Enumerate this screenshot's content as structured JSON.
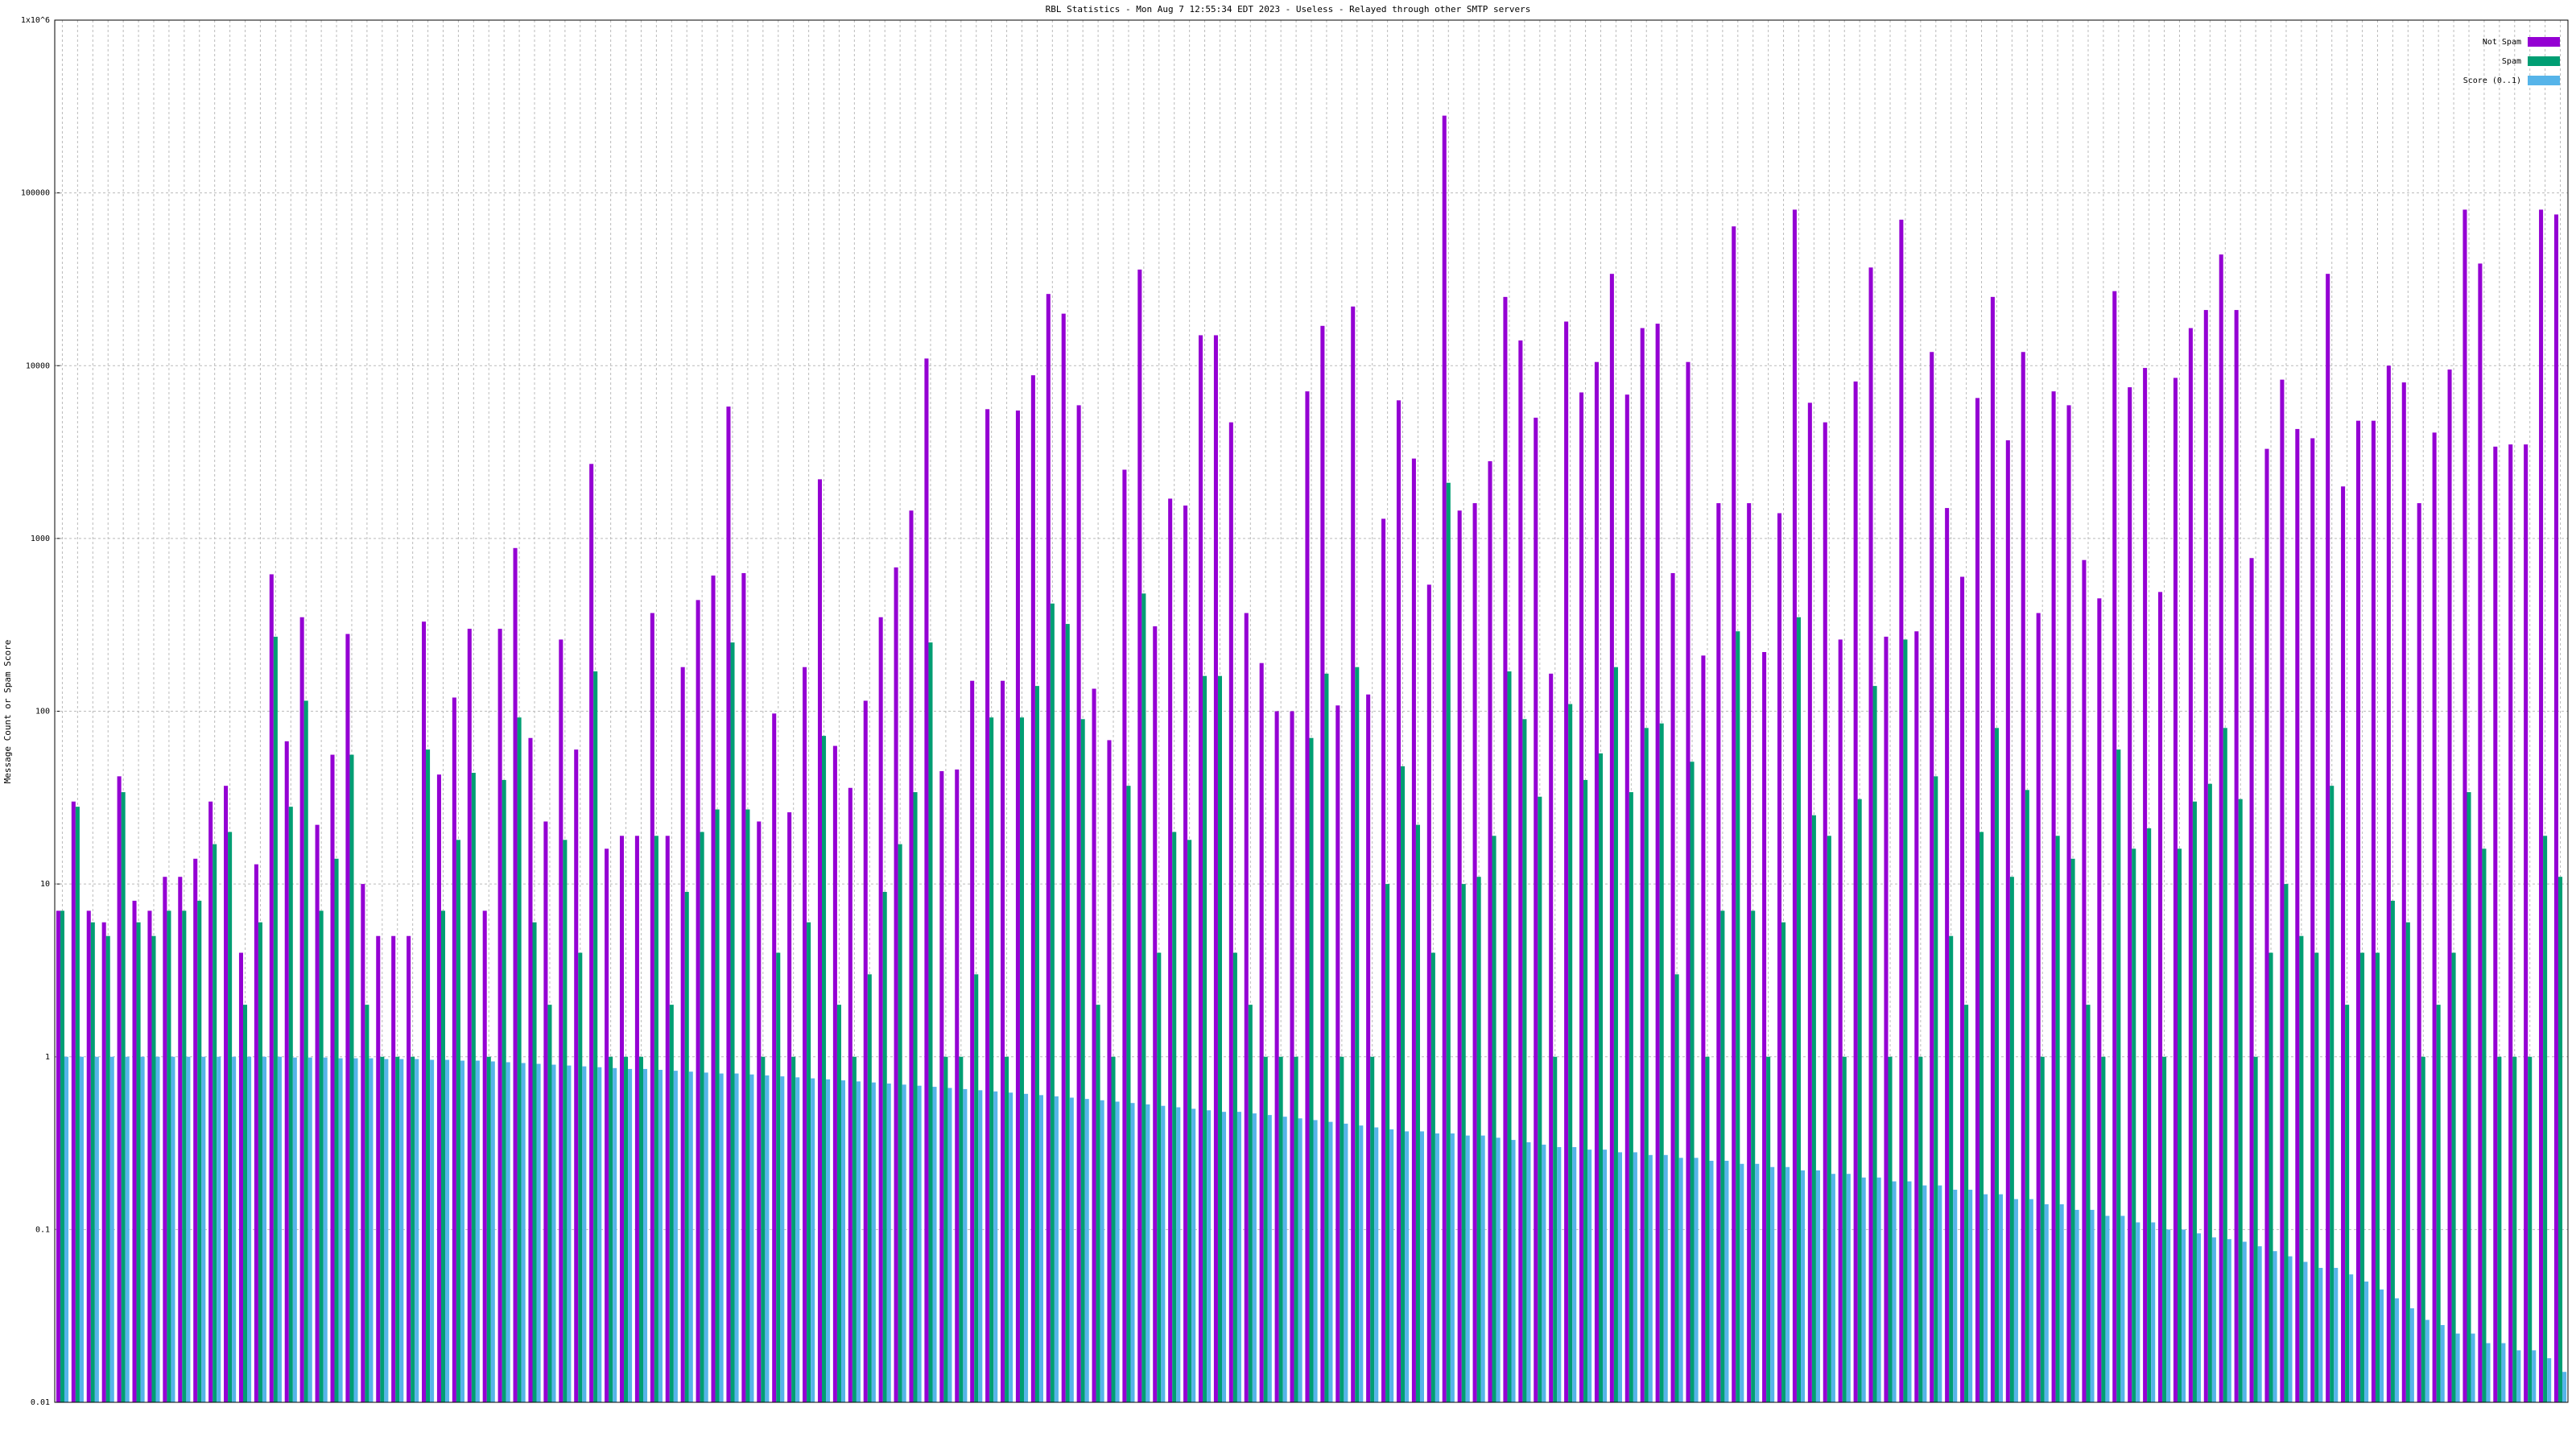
{
  "chart_data": {
    "type": "bar",
    "title": "RBL Statistics - Mon Aug  7 12:55:34 EDT 2023 - Useless - Relayed through other SMTP servers",
    "y_label": "Message Count or Spam Score",
    "log_scale": true,
    "grid": true,
    "legend": "top-right",
    "ylim": [
      0.01,
      1000000
    ],
    "yticks": [
      0.01,
      0.1,
      1,
      10,
      100,
      1000,
      10000,
      100000,
      {
        "value": 1000000,
        "label": "1x10^6"
      }
    ],
    "categories": [
      null,
      null,
      null,
      null,
      null,
      null,
      null,
      null,
      null,
      null,
      null,
      null,
      null,
      null,
      null,
      null,
      null,
      null,
      null,
      null,
      null,
      null,
      null,
      null,
      null,
      null,
      null,
      null,
      null,
      null,
      null,
      null,
      null,
      null,
      null,
      null,
      null,
      null,
      null,
      null,
      null,
      null,
      null,
      null,
      null,
      null,
      null,
      null,
      null,
      null,
      null,
      null,
      null,
      null,
      null,
      null,
      null,
      null,
      null,
      null,
      null,
      null,
      null,
      null,
      null,
      null,
      null,
      null,
      null,
      null,
      null,
      null,
      null,
      null,
      null,
      null,
      null,
      null,
      null,
      null,
      null,
      null,
      null,
      null,
      null,
      null,
      null,
      null,
      null,
      null,
      null,
      null,
      null,
      null,
      null,
      null,
      null,
      null,
      null,
      null,
      null,
      null,
      null,
      null,
      null,
      null,
      null,
      null,
      null,
      null,
      null,
      null,
      null,
      null,
      null,
      null,
      null,
      null,
      null,
      null,
      null,
      null,
      null,
      null,
      null,
      null,
      null,
      null,
      null,
      null,
      null,
      null,
      null,
      null,
      null,
      null,
      null,
      null,
      null,
      null,
      null,
      null,
      null,
      null,
      null,
      null,
      null,
      null,
      null,
      null,
      null,
      null,
      null,
      null,
      null,
      null,
      null,
      null,
      null,
      null,
      null,
      null,
      null,
      null,
      null
    ],
    "series": [
      {
        "name": "Not Spam",
        "color": "#9400d3",
        "values": [
          7,
          30,
          7,
          6,
          42,
          8,
          7,
          11,
          11,
          14,
          30,
          37,
          4,
          13,
          620,
          67,
          350,
          22,
          56,
          280,
          10,
          5,
          5,
          5,
          330,
          43,
          120,
          300,
          7,
          300,
          880,
          70,
          23,
          260,
          60,
          2700,
          16,
          19,
          19,
          370,
          19,
          180,
          440,
          610,
          5800,
          630,
          23,
          97,
          26,
          180,
          2200,
          63,
          36,
          115,
          350,
          680,
          1450,
          11000,
          45,
          46,
          150,
          5600,
          150,
          5500,
          8800,
          26000,
          20000,
          5900,
          135,
          68,
          2500,
          36000,
          310,
          1700,
          1550,
          15000,
          15000,
          4700,
          370,
          190,
          100,
          100,
          7100,
          17000,
          108,
          22000,
          125,
          1300,
          6300,
          2900,
          540,
          280000,
          1450,
          1600,
          2800,
          25000,
          14000,
          5000,
          165,
          18000,
          7000,
          10500,
          34000,
          6800,
          16500,
          17500,
          630,
          10500,
          210,
          1600,
          64000,
          1600,
          220,
          1400,
          80000,
          6100,
          4700,
          260,
          8100,
          37000,
          270,
          70000,
          290,
          12000,
          1500,
          600,
          6500,
          25000,
          3700,
          12000,
          370,
          7100,
          5900,
          750,
          450,
          27000,
          7500,
          9700,
          490,
          8500,
          16500,
          21000,
          44000,
          21000,
          770,
          3300,
          8300,
          4300,
          3800,
          34000,
          2000,
          4800,
          4800,
          10000,
          8000,
          1600,
          4100,
          9500,
          80000,
          39000,
          3400,
          3500,
          3500,
          80000,
          75000
        ]
      },
      {
        "name": "Spam",
        "color": "#009e73",
        "values": [
          7,
          28,
          6,
          5,
          34,
          6,
          5,
          7,
          7,
          8,
          17,
          20,
          2,
          6,
          270,
          28,
          115,
          7,
          14,
          56,
          2,
          1,
          1,
          1,
          60,
          7,
          18,
          44,
          1,
          40,
          92,
          6,
          2,
          18,
          4,
          170,
          1,
          1,
          1,
          19,
          2,
          9,
          20,
          27,
          250,
          27,
          1,
          4,
          1,
          6,
          72,
          2,
          1,
          3,
          9,
          17,
          34,
          250,
          1,
          1,
          3,
          92,
          1,
          92,
          140,
          420,
          320,
          90,
          2,
          1,
          37,
          480,
          4,
          20,
          18,
          160,
          160,
          4,
          2,
          1,
          1,
          1,
          70,
          165,
          1,
          180,
          1,
          10,
          48,
          22,
          4,
          2100,
          10,
          11,
          19,
          170,
          90,
          32,
          1,
          110,
          40,
          57,
          180,
          34,
          80,
          85,
          3,
          51,
          1,
          7,
          290,
          7,
          1,
          6,
          350,
          25,
          19,
          1,
          31,
          140,
          1,
          260,
          1,
          42,
          5,
          2,
          20,
          80,
          11,
          35,
          1,
          19,
          14,
          2,
          1,
          60,
          16,
          21,
          1,
          16,
          30,
          38,
          80,
          31,
          1,
          4,
          10,
          5,
          4,
          37,
          2,
          4,
          4,
          8,
          6,
          1,
          2,
          4,
          34,
          16,
          1,
          1,
          1,
          19,
          11
        ]
      },
      {
        "name": "Score (0..1)",
        "color": "#56b4e9",
        "values": [
          1,
          1,
          1,
          1,
          1,
          1,
          1,
          1,
          1,
          1,
          1,
          1,
          1,
          1,
          1,
          0.99,
          0.99,
          0.99,
          0.98,
          0.98,
          0.98,
          0.97,
          0.97,
          0.97,
          0.96,
          0.96,
          0.95,
          0.95,
          0.94,
          0.93,
          0.92,
          0.91,
          0.9,
          0.89,
          0.88,
          0.87,
          0.86,
          0.85,
          0.85,
          0.84,
          0.83,
          0.82,
          0.81,
          0.8,
          0.8,
          0.79,
          0.78,
          0.77,
          0.76,
          0.75,
          0.74,
          0.73,
          0.72,
          0.71,
          0.7,
          0.69,
          0.68,
          0.67,
          0.66,
          0.65,
          0.64,
          0.63,
          0.62,
          0.61,
          0.6,
          0.59,
          0.58,
          0.57,
          0.56,
          0.55,
          0.54,
          0.53,
          0.52,
          0.51,
          0.5,
          0.49,
          0.48,
          0.48,
          0.47,
          0.46,
          0.45,
          0.44,
          0.43,
          0.42,
          0.41,
          0.4,
          0.39,
          0.38,
          0.37,
          0.37,
          0.36,
          0.36,
          0.35,
          0.35,
          0.34,
          0.33,
          0.32,
          0.31,
          0.3,
          0.3,
          0.29,
          0.29,
          0.28,
          0.28,
          0.27,
          0.27,
          0.26,
          0.26,
          0.25,
          0.25,
          0.24,
          0.24,
          0.23,
          0.23,
          0.22,
          0.22,
          0.21,
          0.21,
          0.2,
          0.2,
          0.19,
          0.19,
          0.18,
          0.18,
          0.17,
          0.17,
          0.16,
          0.16,
          0.15,
          0.15,
          0.14,
          0.14,
          0.13,
          0.13,
          0.12,
          0.12,
          0.11,
          0.11,
          0.1,
          0.1,
          0.095,
          0.09,
          0.088,
          0.085,
          0.08,
          0.075,
          0.07,
          0.065,
          0.06,
          0.06,
          0.055,
          0.05,
          0.045,
          0.04,
          0.035,
          0.03,
          0.028,
          0.025,
          0.025,
          0.022,
          0.022,
          0.02,
          0.02,
          0.018,
          0.015
        ]
      }
    ]
  }
}
